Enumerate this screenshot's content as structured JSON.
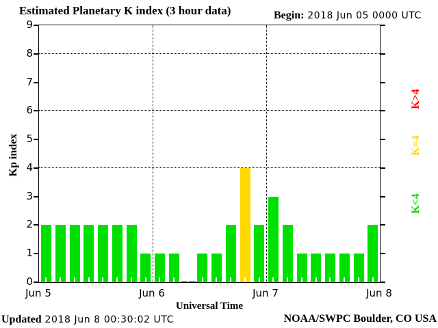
{
  "header": {
    "title": "Estimated Planetary K index (3 hour data)",
    "begin_label": "Begin:",
    "begin_value": "2018 Jun 05 0000 UTC"
  },
  "footer": {
    "updated_label": "Updated",
    "updated_value": "2018 Jun  8 00:30:02 UTC",
    "source": "NOAA/SWPC Boulder, CO USA"
  },
  "chart_data": {
    "type": "bar",
    "title": "Estimated Planetary K index (3 hour data)",
    "begin": "2018 Jun 05 0000 UTC",
    "updated": "2018 Jun 8 00:30:02 UTC",
    "xlabel": "Universal Time",
    "ylabel": "Kp index",
    "ylim": [
      0,
      9
    ],
    "y_ticks": [
      0,
      1,
      2,
      3,
      4,
      5,
      6,
      7,
      8,
      9
    ],
    "gridlines_y": [
      4,
      6,
      8
    ],
    "grid": "dotted horizontal lines at Kp 4/6/8, dotted vertical lines at day boundaries",
    "x_day_labels": [
      "Jun 5",
      "Jun 6",
      "Jun 7",
      "Jun 8"
    ],
    "interval_hours": 3,
    "values": [
      2,
      2,
      2,
      2,
      2,
      2,
      2,
      1,
      1,
      1,
      0,
      1,
      1,
      2,
      4,
      2,
      3,
      2,
      1,
      1,
      1,
      1,
      1,
      2
    ],
    "legend_position": "right",
    "legend": [
      {
        "label": "K>4",
        "color": "#ff0000"
      },
      {
        "label": "K=4",
        "color": "#ffd900"
      },
      {
        "label": "K<4",
        "color": "#00e000"
      }
    ],
    "colors": {
      "quiet": "#00e000",
      "active": "#ffd900",
      "storm": "#ff0000",
      "axis": "#000000",
      "background": "#ffffff"
    }
  }
}
